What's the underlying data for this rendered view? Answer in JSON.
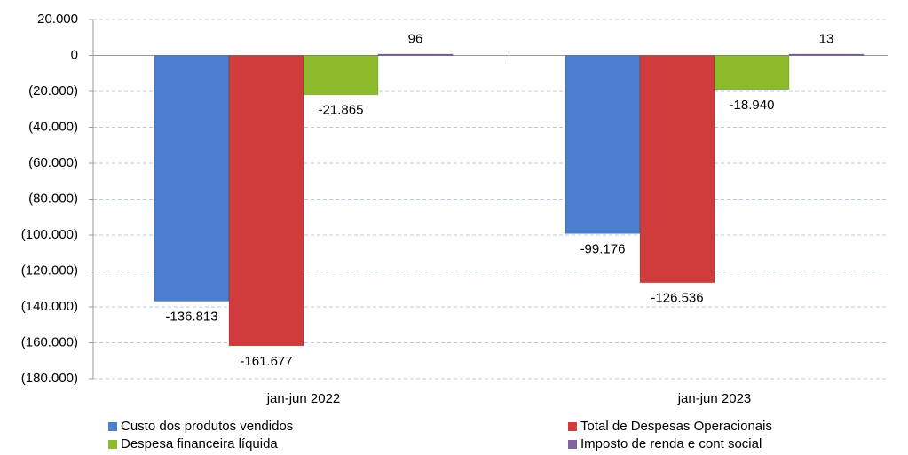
{
  "chart_data": {
    "type": "bar",
    "categories": [
      "jan-jun 2022",
      "jan-jun 2023"
    ],
    "series": [
      {
        "name": "Custo dos produtos vendidos",
        "color": "#4a7fd0",
        "values": [
          -136813,
          -99176
        ],
        "value_labels": [
          "-136.813",
          "-99.176"
        ]
      },
      {
        "name": "Total de Despesas Operacionais",
        "color": "#d03c3c",
        "values": [
          -161677,
          -126536
        ],
        "value_labels": [
          "-161.677",
          "-126.536"
        ]
      },
      {
        "name": "Despesa financeira líquida",
        "color": "#8dbb2c",
        "values": [
          -21865,
          -18940
        ],
        "value_labels": [
          "-21.865",
          "-18.940"
        ]
      },
      {
        "name": "Imposto de renda e cont social",
        "color": "#8064a2",
        "values": [
          96,
          13
        ]
      }
    ],
    "ylim": [
      -180000,
      20000
    ],
    "yticks": [
      {
        "value": -180000,
        "label": "(180.000)"
      },
      {
        "value": -160000,
        "label": "(160.000)"
      },
      {
        "value": -140000,
        "label": "(140.000)"
      },
      {
        "value": -120000,
        "label": "(120.000)"
      },
      {
        "value": -100000,
        "label": "(100.000)"
      },
      {
        "value": -80000,
        "label": "(80.000)"
      },
      {
        "value": -60000,
        "label": "(60.000)"
      },
      {
        "value": -40000,
        "label": "(40.000)"
      },
      {
        "value": -20000,
        "label": "(20.000)"
      },
      0,
      {
        "value": 20000,
        "label": "20.000"
      }
    ],
    "grid": true
  }
}
